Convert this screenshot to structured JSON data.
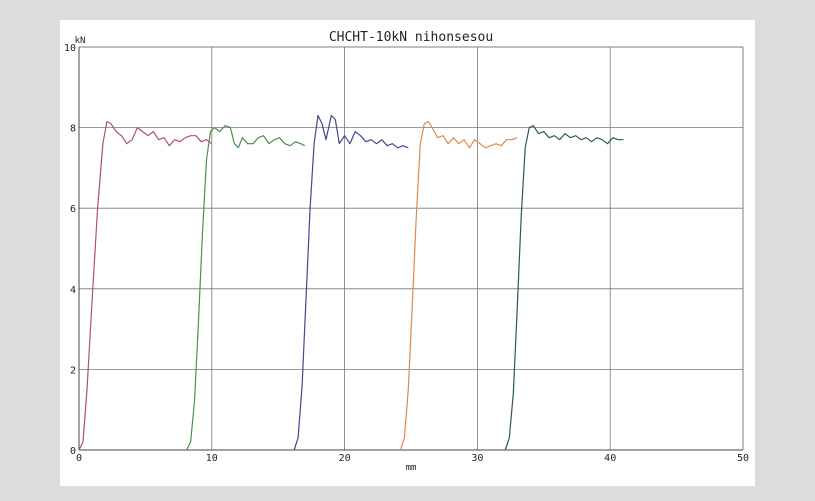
{
  "chart_data": {
    "type": "line",
    "title": "CHCHT-10kN nihonsesou",
    "xlabel": "mm",
    "ylabel": "kN",
    "xlim": [
      0,
      50
    ],
    "ylim": [
      0,
      10
    ],
    "x_ticks": [
      "0",
      "10",
      "20",
      "30",
      "40",
      "50"
    ],
    "y_ticks": [
      "0",
      "2",
      "4",
      "6",
      "8",
      "10"
    ],
    "grid": true,
    "series": [
      {
        "color": "#b0506a",
        "points": [
          [
            0,
            0
          ],
          [
            0.3,
            0.2
          ],
          [
            0.6,
            1.5
          ],
          [
            1,
            3.8
          ],
          [
            1.4,
            6
          ],
          [
            1.8,
            7.6
          ],
          [
            2.1,
            8.15
          ],
          [
            2.4,
            8.1
          ],
          [
            2.8,
            7.9
          ],
          [
            3.2,
            7.8
          ],
          [
            3.6,
            7.6
          ],
          [
            4,
            7.7
          ],
          [
            4.4,
            8.0
          ],
          [
            4.8,
            7.9
          ],
          [
            5.2,
            7.8
          ],
          [
            5.6,
            7.9
          ],
          [
            6,
            7.7
          ],
          [
            6.4,
            7.75
          ],
          [
            6.8,
            7.55
          ],
          [
            7.2,
            7.7
          ],
          [
            7.6,
            7.65
          ],
          [
            8,
            7.75
          ],
          [
            8.4,
            7.8
          ],
          [
            8.8,
            7.8
          ],
          [
            9.2,
            7.65
          ],
          [
            9.6,
            7.7
          ],
          [
            10,
            7.6
          ]
        ]
      },
      {
        "color": "#4f8f4a",
        "points": [
          [
            8.1,
            0
          ],
          [
            8.4,
            0.2
          ],
          [
            8.7,
            1.2
          ],
          [
            9,
            3.2
          ],
          [
            9.3,
            5.4
          ],
          [
            9.6,
            7.2
          ],
          [
            9.9,
            7.9
          ],
          [
            10.2,
            8.0
          ],
          [
            10.6,
            7.9
          ],
          [
            11,
            8.05
          ],
          [
            11.4,
            8.0
          ],
          [
            11.7,
            7.6
          ],
          [
            12,
            7.5
          ],
          [
            12.3,
            7.75
          ],
          [
            12.7,
            7.6
          ],
          [
            13.1,
            7.6
          ],
          [
            13.5,
            7.75
          ],
          [
            13.9,
            7.8
          ],
          [
            14.3,
            7.6
          ],
          [
            14.7,
            7.7
          ],
          [
            15.1,
            7.75
          ],
          [
            15.5,
            7.6
          ],
          [
            15.9,
            7.55
          ],
          [
            16.3,
            7.65
          ],
          [
            16.7,
            7.6
          ],
          [
            17,
            7.55
          ]
        ]
      },
      {
        "color": "#3e4a8e",
        "points": [
          [
            16.2,
            0
          ],
          [
            16.5,
            0.3
          ],
          [
            16.8,
            1.6
          ],
          [
            17.1,
            3.8
          ],
          [
            17.4,
            6.0
          ],
          [
            17.7,
            7.6
          ],
          [
            18,
            8.3
          ],
          [
            18.3,
            8.1
          ],
          [
            18.6,
            7.7
          ],
          [
            19,
            8.3
          ],
          [
            19.3,
            8.2
          ],
          [
            19.6,
            7.6
          ],
          [
            20,
            7.8
          ],
          [
            20.4,
            7.6
          ],
          [
            20.8,
            7.9
          ],
          [
            21.2,
            7.8
          ],
          [
            21.6,
            7.65
          ],
          [
            22,
            7.7
          ],
          [
            22.4,
            7.6
          ],
          [
            22.8,
            7.7
          ],
          [
            23.2,
            7.55
          ],
          [
            23.6,
            7.6
          ],
          [
            24,
            7.5
          ],
          [
            24.4,
            7.55
          ],
          [
            24.8,
            7.5
          ]
        ]
      },
      {
        "color": "#e08a4a",
        "points": [
          [
            24.2,
            0
          ],
          [
            24.5,
            0.3
          ],
          [
            24.8,
            1.5
          ],
          [
            25.1,
            3.6
          ],
          [
            25.4,
            5.8
          ],
          [
            25.7,
            7.6
          ],
          [
            26,
            8.1
          ],
          [
            26.3,
            8.15
          ],
          [
            26.6,
            8.0
          ],
          [
            27,
            7.75
          ],
          [
            27.4,
            7.8
          ],
          [
            27.8,
            7.6
          ],
          [
            28.2,
            7.75
          ],
          [
            28.6,
            7.6
          ],
          [
            29,
            7.7
          ],
          [
            29.4,
            7.5
          ],
          [
            29.8,
            7.7
          ],
          [
            30.2,
            7.6
          ],
          [
            30.6,
            7.5
          ],
          [
            31,
            7.55
          ],
          [
            31.4,
            7.6
          ],
          [
            31.8,
            7.55
          ],
          [
            32.2,
            7.7
          ],
          [
            32.6,
            7.7
          ],
          [
            33,
            7.75
          ]
        ]
      },
      {
        "color": "#2f5a4a",
        "points": [
          [
            32.1,
            0
          ],
          [
            32.4,
            0.3
          ],
          [
            32.7,
            1.4
          ],
          [
            33,
            3.5
          ],
          [
            33.3,
            5.8
          ],
          [
            33.6,
            7.5
          ],
          [
            33.9,
            8.0
          ],
          [
            34.2,
            8.05
          ],
          [
            34.6,
            7.85
          ],
          [
            35,
            7.9
          ],
          [
            35.4,
            7.75
          ],
          [
            35.8,
            7.8
          ],
          [
            36.2,
            7.7
          ],
          [
            36.6,
            7.85
          ],
          [
            37,
            7.75
          ],
          [
            37.4,
            7.8
          ],
          [
            37.8,
            7.7
          ],
          [
            38.2,
            7.75
          ],
          [
            38.6,
            7.65
          ],
          [
            39,
            7.75
          ],
          [
            39.4,
            7.7
          ],
          [
            39.8,
            7.6
          ],
          [
            40.2,
            7.75
          ],
          [
            40.6,
            7.7
          ],
          [
            41,
            7.7
          ]
        ]
      }
    ]
  }
}
